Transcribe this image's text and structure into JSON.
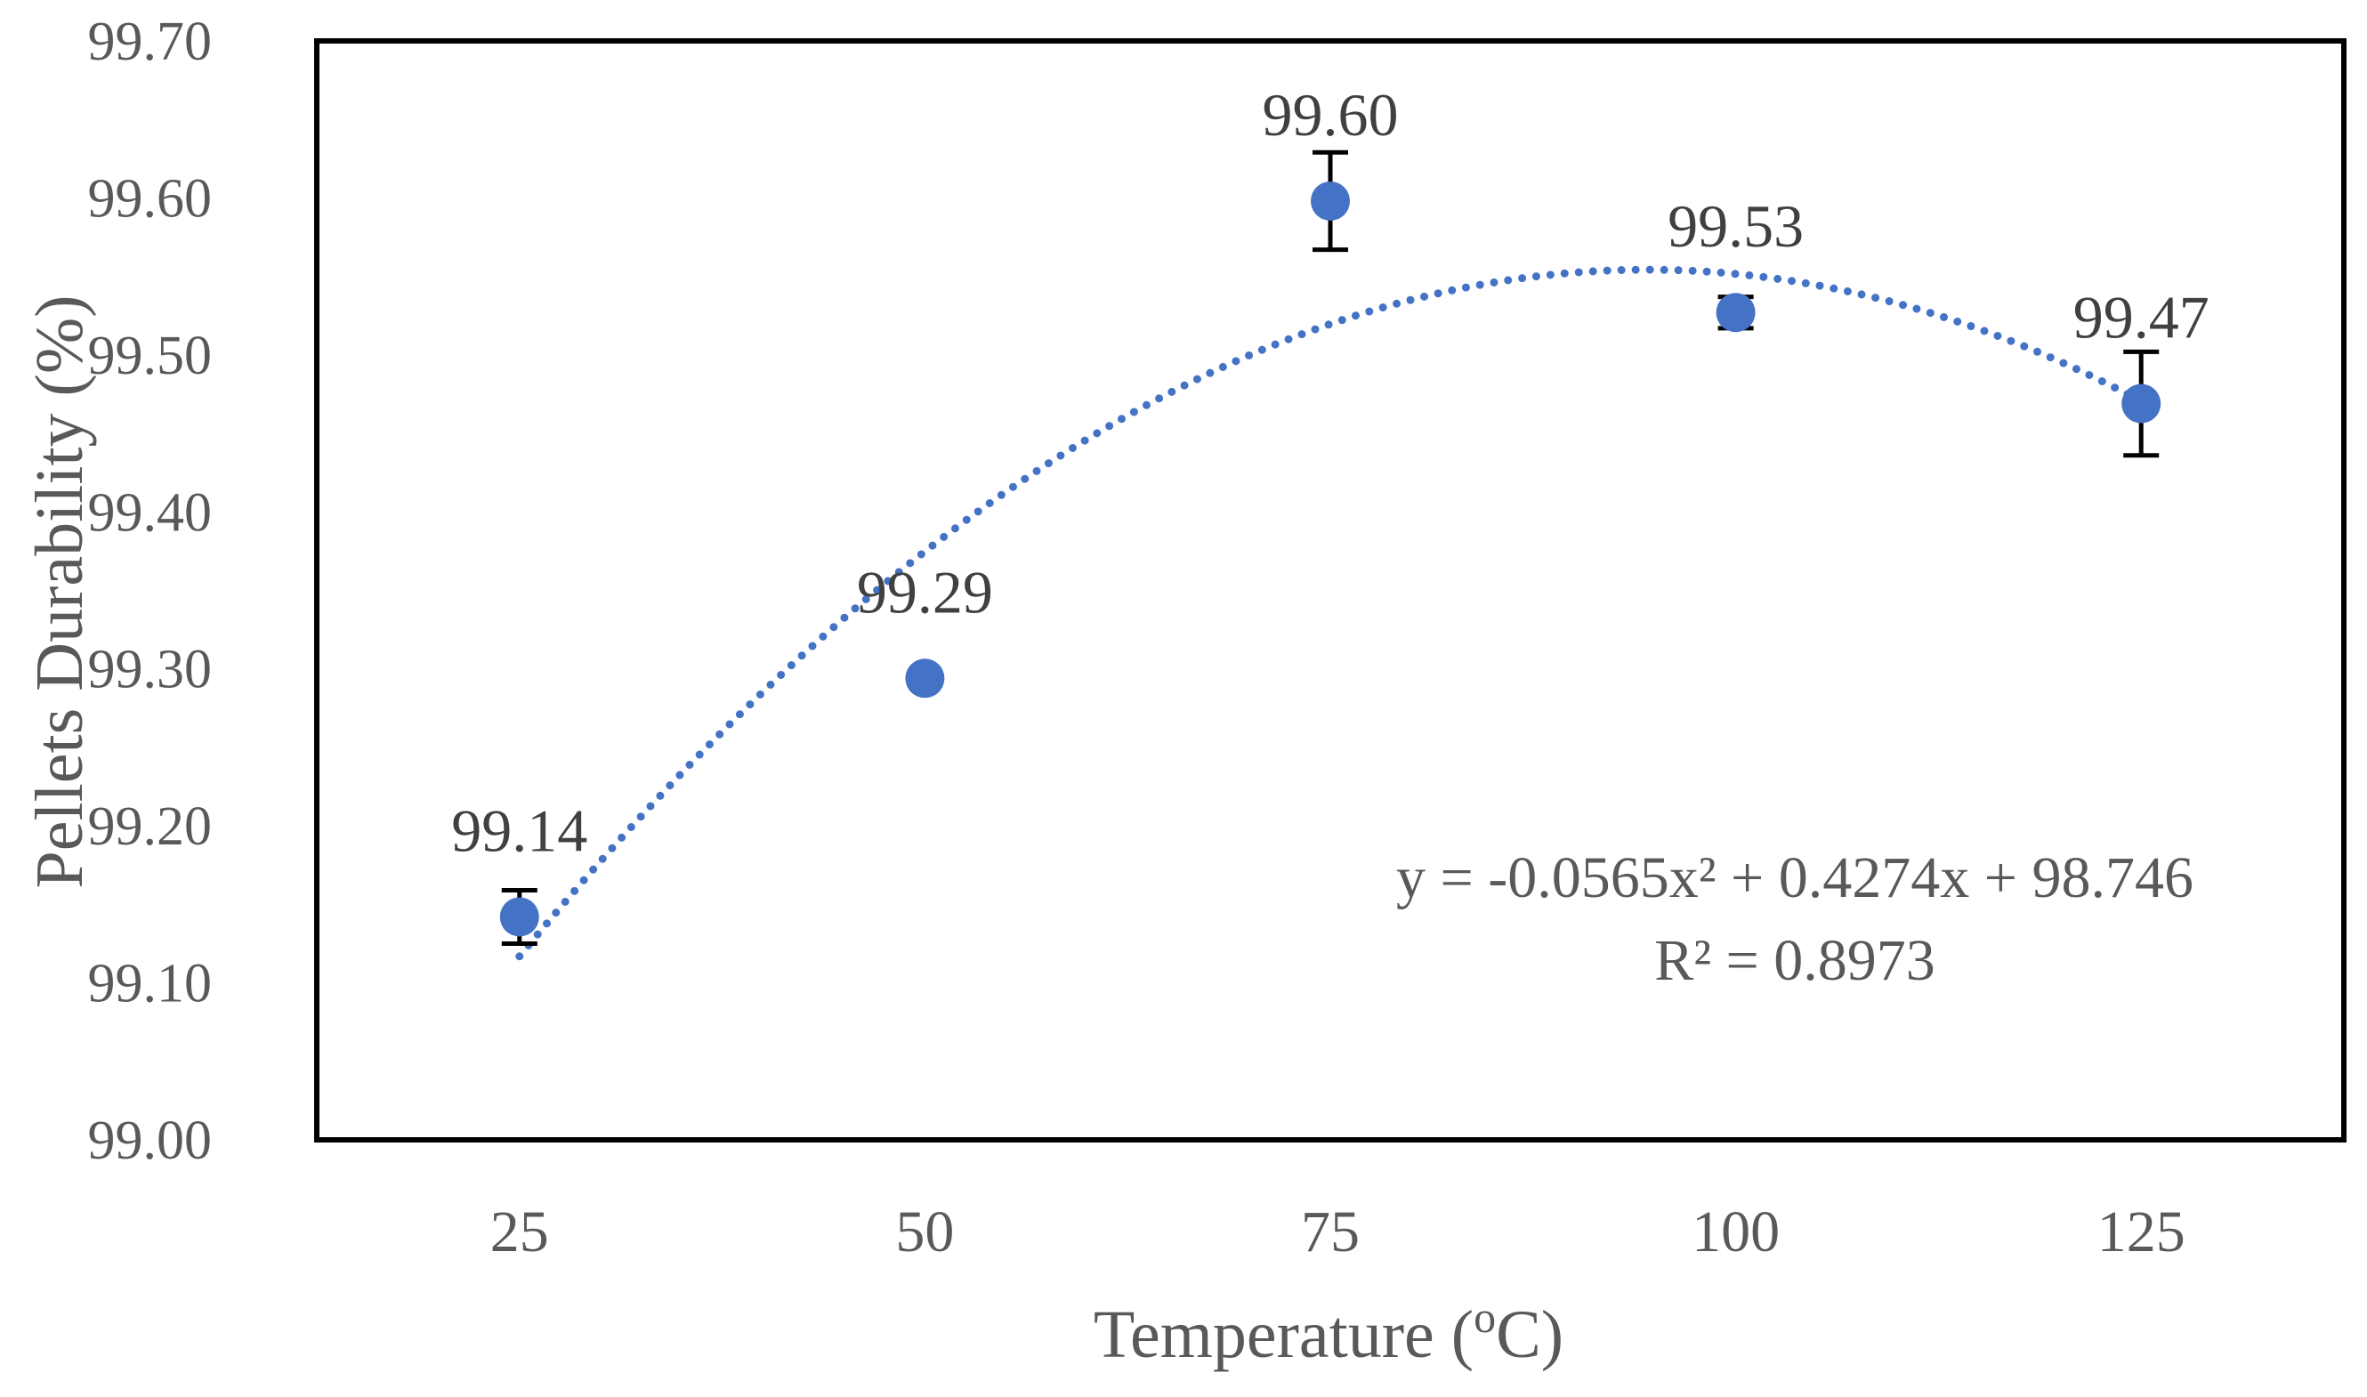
{
  "chart_data": {
    "type": "scatter",
    "title": "",
    "xlabel": {
      "before": "Temperature (",
      "superscript": "o",
      "after": "C)"
    },
    "ylabel": "Pellets Durability (%)",
    "categories": [
      "25",
      "50",
      "75",
      "100",
      "125"
    ],
    "series": [
      {
        "values": [
          99.142,
          99.294,
          99.598,
          99.527,
          99.469
        ],
        "errors": [
          0.017,
          0,
          0.031,
          0.01,
          0.033
        ],
        "labels": [
          "99.14",
          "99.29",
          "99.60",
          "99.53",
          "99.47"
        ],
        "color": "#4472C4"
      }
    ],
    "ylim": [
      99.0,
      99.7
    ],
    "yticks": [
      "99.00",
      "99.10",
      "99.20",
      "99.30",
      "99.40",
      "99.50",
      "99.60",
      "99.70"
    ],
    "grid": false,
    "trendline": {
      "order": 2,
      "coefficients": [
        -0.0565,
        0.4274,
        98.746
      ],
      "x_range": [
        1,
        5
      ],
      "equation": "y = -0.0565x² + 0.4274x + 98.746",
      "r_squared_label": "R² = 0.8973",
      "color": "#4472C4"
    },
    "error_bar_color": "#000000",
    "frame_color": "#000000"
  }
}
